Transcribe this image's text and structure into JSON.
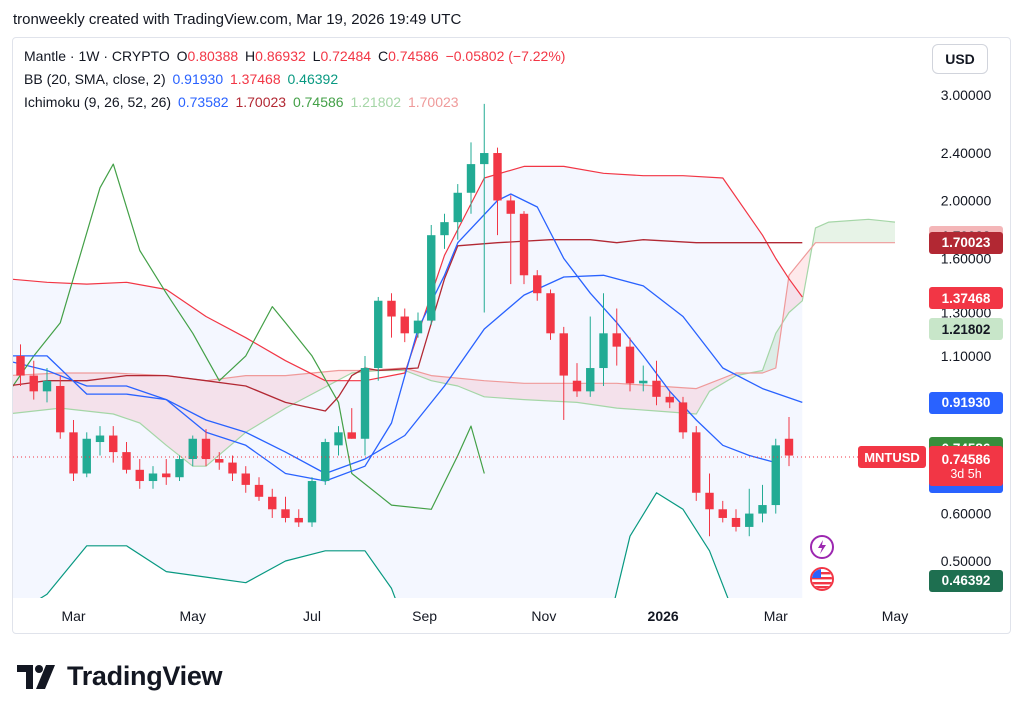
{
  "header": {
    "text": "tronweekly created with TradingView.com, Mar 19, 2026 19:49 UTC"
  },
  "legend": {
    "symbol": "Mantle · 1W · CRYPTO",
    "o_label": "O",
    "o_value": "0.80388",
    "h_label": "H",
    "h_value": "0.86932",
    "l_label": "L",
    "l_value": "0.72484",
    "c_label": "C",
    "c_value": "0.74586",
    "change": "−0.05802 (−7.22%)",
    "bb_label": "BB (20, SMA, close, 2)",
    "bb_values": [
      "0.91930",
      "1.37468",
      "0.46392"
    ],
    "ichimoku_label": "Ichimoku (9, 26, 52, 26)",
    "ichimoku_values": [
      "0.73582",
      "1.70023",
      "0.74586",
      "1.21802",
      "1.70023"
    ]
  },
  "currency_button": "USD",
  "price_tags": [
    {
      "label": "1.70023",
      "price": 1.74,
      "bg": "#f4b6b8",
      "fg": "#131722"
    },
    {
      "label": "1.70023",
      "price": 1.70023,
      "bg": "#b22833",
      "fg": "#ffffff"
    },
    {
      "label": "1.37468",
      "price": 1.37468,
      "bg": "#f23645",
      "fg": "#ffffff"
    },
    {
      "label": "1.21802",
      "price": 1.21802,
      "bg": "#c8e6c9",
      "fg": "#131722"
    },
    {
      "label": "0.91930",
      "price": 0.9193,
      "bg": "#2962ff",
      "fg": "#ffffff"
    },
    {
      "label": "0.74586",
      "price": 0.7715,
      "bg": "#388e3c",
      "fg": "#ffffff"
    },
    {
      "label": "0.73582",
      "price": 0.678,
      "bg": "#2962ff",
      "fg": "#ffffff"
    },
    {
      "label": "0.46392",
      "price": 0.46392,
      "bg": "#1e6f50",
      "fg": "#ffffff"
    }
  ],
  "current_price_tag": {
    "symbol": "MNTUSD",
    "price_label": "0.74586",
    "countdown": "3d 5h",
    "bg": "#f23645"
  },
  "logo": {
    "text": "TradingView"
  },
  "colors": {
    "up": "#22ab94",
    "down": "#f23645",
    "bb_mid": "#2962ff",
    "bb_band": "#f23645",
    "ichi_conv": "#2962ff",
    "ichi_base": "#b22833",
    "ichi_lag": "#43a047",
    "ichi_spanA": "#a5d6a7",
    "ichi_spanB": "#ef9a9a"
  },
  "chart_data": {
    "type": "candlestick",
    "scale": "log",
    "y_ticks": [
      3.0,
      2.4,
      2.0,
      1.6,
      1.3,
      1.1,
      0.6,
      0.5
    ],
    "y_tick_labels": [
      "3.00000",
      "2.40000",
      "2.00000",
      "1.60000",
      "1.30000",
      "1.10000",
      "0.60000",
      "0.50000"
    ],
    "x_ticks": [
      {
        "label": "Mar",
        "bar": 4,
        "bold": false
      },
      {
        "label": "May",
        "bar": 13,
        "bold": false
      },
      {
        "label": "Jul",
        "bar": 22,
        "bold": false
      },
      {
        "label": "Sep",
        "bar": 30.5,
        "bold": false
      },
      {
        "label": "Nov",
        "bar": 39.5,
        "bold": false
      },
      {
        "label": "2026",
        "bar": 48.5,
        "bold": true
      },
      {
        "label": "Mar",
        "bar": 57,
        "bold": false
      },
      {
        "label": "May",
        "bar": 66,
        "bold": false
      }
    ],
    "candles": [
      [
        1.1,
        1.15,
        0.98,
        1.02
      ],
      [
        1.02,
        1.08,
        0.93,
        0.96
      ],
      [
        0.96,
        1.05,
        0.92,
        1.0
      ],
      [
        0.98,
        1.02,
        0.8,
        0.82
      ],
      [
        0.82,
        0.86,
        0.68,
        0.7
      ],
      [
        0.7,
        0.82,
        0.69,
        0.8
      ],
      [
        0.79,
        0.84,
        0.75,
        0.81
      ],
      [
        0.81,
        0.84,
        0.73,
        0.76
      ],
      [
        0.76,
        0.79,
        0.7,
        0.71
      ],
      [
        0.71,
        0.74,
        0.66,
        0.68
      ],
      [
        0.68,
        0.72,
        0.66,
        0.7
      ],
      [
        0.7,
        0.74,
        0.67,
        0.69
      ],
      [
        0.69,
        0.75,
        0.68,
        0.74
      ],
      [
        0.74,
        0.81,
        0.72,
        0.8
      ],
      [
        0.8,
        0.83,
        0.72,
        0.74
      ],
      [
        0.74,
        0.76,
        0.71,
        0.73
      ],
      [
        0.73,
        0.75,
        0.68,
        0.7
      ],
      [
        0.7,
        0.72,
        0.65,
        0.67
      ],
      [
        0.67,
        0.69,
        0.63,
        0.64
      ],
      [
        0.64,
        0.66,
        0.59,
        0.61
      ],
      [
        0.61,
        0.64,
        0.58,
        0.59
      ],
      [
        0.59,
        0.61,
        0.57,
        0.58
      ],
      [
        0.58,
        0.69,
        0.57,
        0.68
      ],
      [
        0.68,
        0.8,
        0.67,
        0.79
      ],
      [
        0.78,
        0.84,
        0.75,
        0.82
      ],
      [
        0.82,
        0.9,
        0.8,
        0.8
      ],
      [
        0.8,
        1.1,
        0.75,
        1.05
      ],
      [
        1.05,
        1.38,
        1.0,
        1.36
      ],
      [
        1.36,
        1.4,
        1.18,
        1.28
      ],
      [
        1.28,
        1.32,
        1.16,
        1.2
      ],
      [
        1.2,
        1.3,
        1.18,
        1.26
      ],
      [
        1.26,
        1.82,
        1.24,
        1.75
      ],
      [
        1.75,
        1.9,
        1.66,
        1.84
      ],
      [
        1.84,
        2.13,
        1.72,
        2.06
      ],
      [
        2.06,
        2.5,
        1.9,
        2.3
      ],
      [
        2.3,
        2.9,
        1.3,
        2.4
      ],
      [
        2.4,
        2.45,
        1.75,
        2.0
      ],
      [
        2.0,
        2.04,
        1.45,
        1.9
      ],
      [
        1.9,
        1.92,
        1.45,
        1.5
      ],
      [
        1.5,
        1.53,
        1.36,
        1.4
      ],
      [
        1.4,
        1.42,
        1.17,
        1.2
      ],
      [
        1.2,
        1.23,
        0.86,
        1.02
      ],
      [
        1.0,
        1.07,
        0.94,
        0.96
      ],
      [
        0.96,
        1.28,
        0.94,
        1.05
      ],
      [
        1.05,
        1.4,
        0.98,
        1.2
      ],
      [
        1.2,
        1.32,
        1.06,
        1.14
      ],
      [
        1.14,
        1.18,
        0.96,
        0.99
      ],
      [
        0.99,
        1.06,
        0.96,
        1.0
      ],
      [
        1.0,
        1.08,
        0.91,
        0.94
      ],
      [
        0.94,
        0.96,
        0.9,
        0.92
      ],
      [
        0.92,
        0.94,
        0.8,
        0.82
      ],
      [
        0.82,
        0.84,
        0.63,
        0.65
      ],
      [
        0.65,
        0.7,
        0.55,
        0.61
      ],
      [
        0.61,
        0.63,
        0.58,
        0.59
      ],
      [
        0.59,
        0.61,
        0.56,
        0.57
      ],
      [
        0.57,
        0.66,
        0.55,
        0.6
      ],
      [
        0.6,
        0.67,
        0.58,
        0.62
      ],
      [
        0.62,
        0.8,
        0.6,
        0.78
      ],
      [
        0.8,
        0.87,
        0.72,
        0.75
      ]
    ],
    "bb_middle": [
      [
        -1,
        1.08
      ],
      [
        2,
        1.04
      ],
      [
        5,
        0.98
      ],
      [
        8,
        0.98
      ],
      [
        11,
        0.93
      ],
      [
        14,
        0.86
      ],
      [
        17,
        0.82
      ],
      [
        20,
        0.76
      ],
      [
        23,
        0.7
      ],
      [
        26,
        0.74
      ],
      [
        29,
        0.81
      ],
      [
        32,
        0.98
      ],
      [
        35,
        1.22
      ],
      [
        38,
        1.39
      ],
      [
        41,
        1.49
      ],
      [
        44,
        1.5
      ],
      [
        47,
        1.44
      ],
      [
        50,
        1.28
      ],
      [
        53,
        1.05
      ],
      [
        56,
        0.97
      ],
      [
        59,
        0.92
      ]
    ],
    "bb_upper": [
      [
        -1,
        1.48
      ],
      [
        2,
        1.46
      ],
      [
        5,
        1.45
      ],
      [
        8,
        1.46
      ],
      [
        11,
        1.42
      ],
      [
        14,
        1.28
      ],
      [
        17,
        1.18
      ],
      [
        20,
        1.08
      ],
      [
        23,
        1.0
      ],
      [
        26,
        1.0
      ],
      [
        29,
        1.03
      ],
      [
        32,
        1.62
      ],
      [
        35,
        2.18
      ],
      [
        38,
        2.28
      ],
      [
        41,
        2.28
      ],
      [
        44,
        2.22
      ],
      [
        47,
        2.2
      ],
      [
        50,
        2.2
      ],
      [
        53,
        2.18
      ],
      [
        56,
        1.75
      ],
      [
        57,
        1.6
      ],
      [
        58,
        1.48
      ],
      [
        59,
        1.38
      ]
    ],
    "bb_lower": [
      [
        -1,
        0.4
      ],
      [
        2,
        0.44
      ],
      [
        5,
        0.53
      ],
      [
        8,
        0.53
      ],
      [
        11,
        0.48
      ],
      [
        14,
        0.47
      ],
      [
        17,
        0.46
      ],
      [
        20,
        0.5
      ],
      [
        23,
        0.52
      ],
      [
        26,
        0.52
      ],
      [
        28,
        0.45
      ],
      [
        31,
        0.3
      ],
      [
        44,
        0.36
      ],
      [
        46,
        0.55
      ],
      [
        48,
        0.65
      ],
      [
        50,
        0.61
      ],
      [
        52,
        0.52
      ],
      [
        54,
        0.4
      ],
      [
        56,
        0.35
      ],
      [
        59,
        0.3
      ]
    ],
    "ichimoku_conversion": [
      [
        -1,
        1.1
      ],
      [
        2,
        1.1
      ],
      [
        5,
        0.95
      ],
      [
        8,
        0.95
      ],
      [
        11,
        0.93
      ],
      [
        14,
        0.82
      ],
      [
        17,
        0.78
      ],
      [
        20,
        0.7
      ],
      [
        23,
        0.68
      ],
      [
        26,
        0.72
      ],
      [
        28,
        0.85
      ],
      [
        30,
        1.22
      ],
      [
        32,
        1.5
      ],
      [
        33,
        1.7
      ],
      [
        36,
        2.0
      ],
      [
        37,
        2.05
      ],
      [
        39,
        1.95
      ],
      [
        41,
        1.6
      ],
      [
        43,
        1.4
      ],
      [
        45,
        1.25
      ],
      [
        47,
        1.1
      ],
      [
        49,
        0.96
      ],
      [
        51,
        0.86
      ],
      [
        53,
        0.78
      ],
      [
        55,
        0.75
      ],
      [
        57,
        0.73
      ]
    ],
    "ichimoku_base": [
      [
        -1,
        0.98
      ],
      [
        2,
        1.0
      ],
      [
        5,
        1.0
      ],
      [
        8,
        1.02
      ],
      [
        11,
        1.02
      ],
      [
        14,
        1.0
      ],
      [
        17,
        0.98
      ],
      [
        20,
        0.92
      ],
      [
        23,
        0.89
      ],
      [
        24,
        0.94
      ],
      [
        25,
        1.02
      ],
      [
        26,
        1.05
      ],
      [
        27,
        1.04
      ],
      [
        30,
        1.05
      ],
      [
        32,
        1.48
      ],
      [
        33,
        1.68
      ],
      [
        36,
        1.7
      ],
      [
        40,
        1.72
      ],
      [
        43,
        1.72
      ],
      [
        45,
        1.7
      ],
      [
        47,
        1.72
      ],
      [
        51,
        1.7
      ],
      [
        55,
        1.7
      ],
      [
        59,
        1.7
      ]
    ],
    "ichimoku_lagging": [
      [
        -1,
        0.95
      ],
      [
        1,
        1.1
      ],
      [
        3,
        1.25
      ],
      [
        6,
        2.1
      ],
      [
        7,
        2.3
      ],
      [
        9,
        1.65
      ],
      [
        11,
        1.4
      ],
      [
        13,
        1.2
      ],
      [
        15,
        1.0
      ],
      [
        17,
        1.1
      ],
      [
        19,
        1.33
      ],
      [
        20,
        1.25
      ],
      [
        22,
        1.1
      ],
      [
        24,
        0.92
      ],
      [
        25,
        0.7
      ],
      [
        28,
        0.62
      ],
      [
        31,
        0.61
      ],
      [
        33,
        0.75
      ],
      [
        34,
        0.84
      ],
      [
        35,
        0.7
      ]
    ],
    "ichimoku_spanA": [
      [
        -1,
        0.88
      ],
      [
        3,
        0.9
      ],
      [
        7,
        0.88
      ],
      [
        9,
        0.85
      ],
      [
        11,
        0.78
      ],
      [
        13,
        0.72
      ],
      [
        14,
        0.72
      ],
      [
        17,
        0.82
      ],
      [
        20,
        0.9
      ],
      [
        22,
        0.95
      ],
      [
        25,
        1.03
      ],
      [
        27,
        1.04
      ],
      [
        29,
        1.04
      ],
      [
        31,
        1.0
      ],
      [
        33,
        0.98
      ],
      [
        35,
        0.94
      ],
      [
        38,
        0.93
      ],
      [
        42,
        0.92
      ],
      [
        45,
        0.9
      ],
      [
        48,
        0.89
      ],
      [
        51,
        0.88
      ],
      [
        52,
        0.96
      ],
      [
        54,
        1.02
      ],
      [
        56,
        1.04
      ],
      [
        57,
        1.2
      ],
      [
        58,
        1.3
      ],
      [
        59,
        1.36
      ],
      [
        60,
        1.8
      ],
      [
        61,
        1.84
      ],
      [
        64,
        1.86
      ],
      [
        66,
        1.84
      ]
    ],
    "ichimoku_spanB": [
      [
        -1,
        1.02
      ],
      [
        3,
        1.03
      ],
      [
        7,
        1.03
      ],
      [
        11,
        1.02
      ],
      [
        14,
        1.0
      ],
      [
        17,
        1.02
      ],
      [
        20,
        1.02
      ],
      [
        24,
        1.04
      ],
      [
        26,
        1.04
      ],
      [
        29,
        1.05
      ],
      [
        31,
        1.02
      ],
      [
        35,
        1.0
      ],
      [
        38,
        0.99
      ],
      [
        42,
        0.99
      ],
      [
        45,
        0.99
      ],
      [
        48,
        0.98
      ],
      [
        51,
        0.97
      ],
      [
        54,
        1.03
      ],
      [
        56,
        1.03
      ],
      [
        57,
        1.05
      ],
      [
        58,
        1.5
      ],
      [
        60,
        1.7
      ],
      [
        64,
        1.7
      ],
      [
        66,
        1.7
      ]
    ]
  }
}
